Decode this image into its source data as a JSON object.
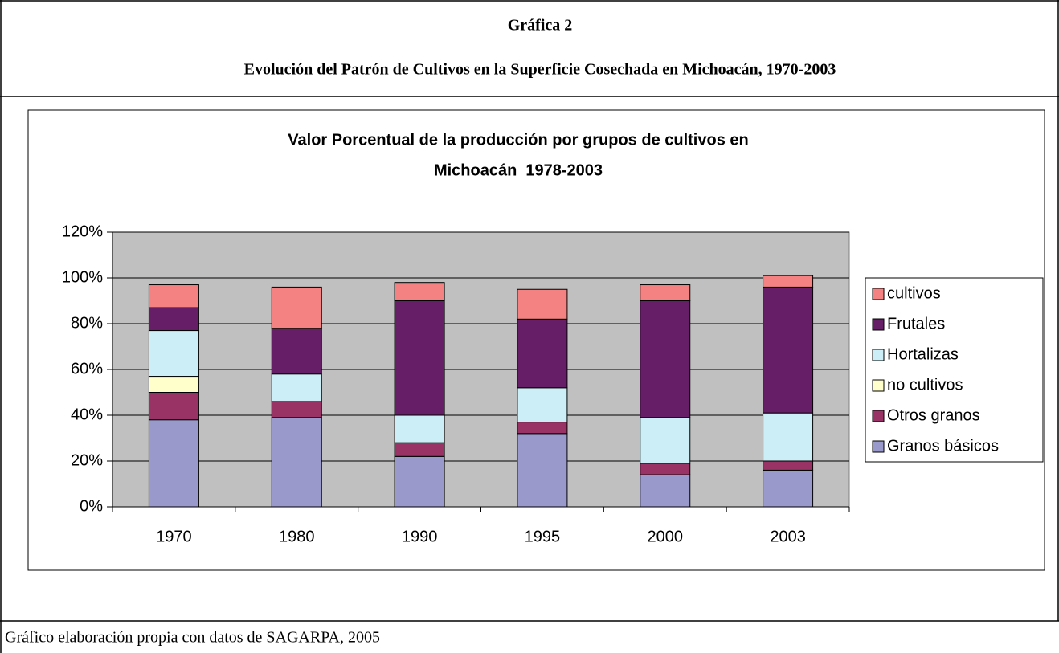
{
  "header": {
    "title": "Gráfica 2",
    "subtitle": "Evolución del Patrón de Cultivos en la Superficie Cosechada en Michoacán, 1970-2003"
  },
  "chart_data": {
    "type": "stacked_bar",
    "title": [
      "Valor Porcentual de la producción por grupos de cultivos en",
      "Michoacán  1978-2003"
    ],
    "categories": [
      "1970",
      "1980",
      "1990",
      "1995",
      "2000",
      "2003"
    ],
    "series": [
      {
        "name": "Granos básicos",
        "color": "#9999cc",
        "values": [
          38,
          39,
          22,
          32,
          14,
          16
        ]
      },
      {
        "name": "Otros granos",
        "color": "#993366",
        "values": [
          12,
          7,
          6,
          5,
          5,
          4
        ]
      },
      {
        "name": "no cultivos",
        "color": "#ffffcc",
        "values": [
          7,
          0,
          0,
          0,
          0,
          0
        ]
      },
      {
        "name": "Hortalizas",
        "color": "#cceef6",
        "values": [
          20,
          12,
          12,
          15,
          20,
          21
        ]
      },
      {
        "name": "Frutales",
        "color": "#661f66",
        "values": [
          10,
          20,
          50,
          30,
          51,
          55
        ]
      },
      {
        "name": "cultivos",
        "color": "#f58282",
        "values": [
          10,
          18,
          8,
          13,
          7,
          5
        ]
      }
    ],
    "ylim": [
      0,
      120
    ],
    "yticks": [
      {
        "value": 0,
        "label": "0%"
      },
      {
        "value": 20,
        "label": "20%"
      },
      {
        "value": 40,
        "label": "40%"
      },
      {
        "value": 60,
        "label": "60%"
      },
      {
        "value": 80,
        "label": "80%"
      },
      {
        "value": 100,
        "label": "100%"
      },
      {
        "value": 120,
        "label": "120%"
      }
    ],
    "grid": true,
    "legend": "right",
    "plot_background": "#c0c0c0"
  },
  "footer": "Gráfico elaboración propia con datos de SAGARPA, 2005"
}
